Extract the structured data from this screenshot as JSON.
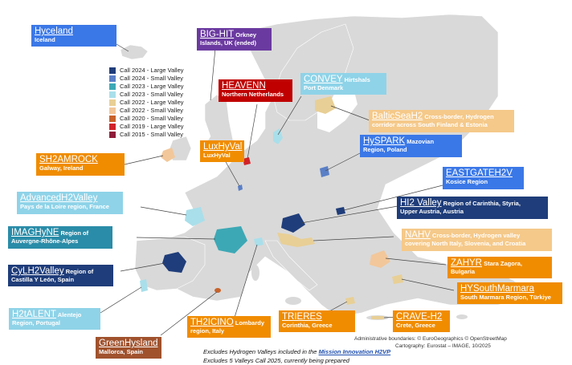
{
  "colors": {
    "call2024_large": "#1f3d7a",
    "call2024_small": "#5a7fc6",
    "call2023_large": "#3da8b5",
    "call2023_small": "#a9dfea",
    "call2022_large": "#e8cf95",
    "call2022_small": "#f2c79a",
    "call2020_small": "#c8622a",
    "call2019_large": "#d1232a",
    "call2015_small": "#8e1c3a",
    "land": "#d9d9d9",
    "highlight": "#ffffff"
  },
  "legend": [
    {
      "label": "Call 2024 - Large Valley",
      "color": "#1f3d7a"
    },
    {
      "label": "Call 2024 - Small Valley",
      "color": "#5a7fc6"
    },
    {
      "label": "Call 2023 - Large Valley",
      "color": "#3da8b5"
    },
    {
      "label": "Call 2023 - Small Valley",
      "color": "#a9dfea"
    },
    {
      "label": "Call 2022 - Large Valley",
      "color": "#e8cf95"
    },
    {
      "label": "Call 2022 - Small Valley",
      "color": "#f2c79a"
    },
    {
      "label": "Call 2020 - Small Valley",
      "color": "#c8622a"
    },
    {
      "label": "Call 2019 - Large Valley",
      "color": "#d1232a"
    },
    {
      "label": "Call 2015 - Small Valley",
      "color": "#8e1c3a"
    }
  ],
  "labels": {
    "hyceland": {
      "name": "Hyceland",
      "sub": "Iceland"
    },
    "bighit": {
      "name": "BIG-HIT",
      "sub1": " Orkney",
      "sub2": "Islands, UK  (ended)"
    },
    "heavenn": {
      "name": "HEAVENN",
      "sub": "Northern Netherlands"
    },
    "convey": {
      "name": "CONVEY",
      "sub1": " Hirtshals",
      "sub2": "Port Denmark"
    },
    "balticsea": {
      "name": "BalticSeaH2",
      "sub1": " Cross-border, Hydrogen",
      "sub2": "corridor across South Finland & Estonia"
    },
    "sh2amrock": {
      "name": "SH2AMROCK",
      "sub": "Galway, Ireland"
    },
    "luxhyval": {
      "name": "LuxHyVal",
      "sub": "LuxHyVal"
    },
    "hyspark": {
      "name": "HySPARK",
      "sub1": " Mazovian",
      "sub2": "Region, Poland"
    },
    "eastgate": {
      "name": "EASTGATEH2V",
      "sub": "Kosice Region"
    },
    "advanced": {
      "name": "AdvancedH2Valley",
      "sub": "Pays de la Loire region, France"
    },
    "hi2valley": {
      "name": "HI2 Valley",
      "sub1": " Region of Carinthia, Styria,",
      "sub2": "Upper Austria, Austria"
    },
    "imaghyne": {
      "name": "IMAGHyNE",
      "sub1": " Region of",
      "sub2": "Auvergne-Rhône-Alpes"
    },
    "nahv": {
      "name": "NAHV",
      "sub1": " Cross-border, Hydrogen valley",
      "sub2": "covering North Italy, Slovenia, and Croatia"
    },
    "cylh2": {
      "name": "CyLH2Valley",
      "sub1": " Region of",
      "sub2": "Castilla Y León, Spain"
    },
    "zahyr": {
      "name": "ZAHYR",
      "sub1": " Stara Zagora,",
      "sub2": "Bulgaria"
    },
    "hysouth": {
      "name": "HYSouthMarmara",
      "sub": "South Marmara Region, Türkiye"
    },
    "h2talent": {
      "name": "H2tALENT",
      "sub1": " Alentejo",
      "sub2": "Region, Portugal"
    },
    "th2icino": {
      "name": "TH2ICINO",
      "sub1": " Lombardy",
      "sub2": "region, Italy"
    },
    "trieres": {
      "name": "TRIERES",
      "sub": "Corinthia, Greece"
    },
    "craveh2": {
      "name": "CRAVE-H2",
      "sub": "Crete, Greece"
    },
    "greenhysland": {
      "name": "GreenHysland",
      "sub": "Mallorca, Spain"
    }
  },
  "footer": {
    "admin": "Administrative boundaries: © EuroGeographics © OpenStreetMap",
    "carto": "Cartography: Eurostat – IMAGE, 10/2025",
    "line1_prefix": "Excludes Hydrogen Valleys included in the ",
    "line1_link": "Mission Innovation H2VP",
    "line2": "Excludes 5 Valleys Call 2025, currently being prepared"
  }
}
